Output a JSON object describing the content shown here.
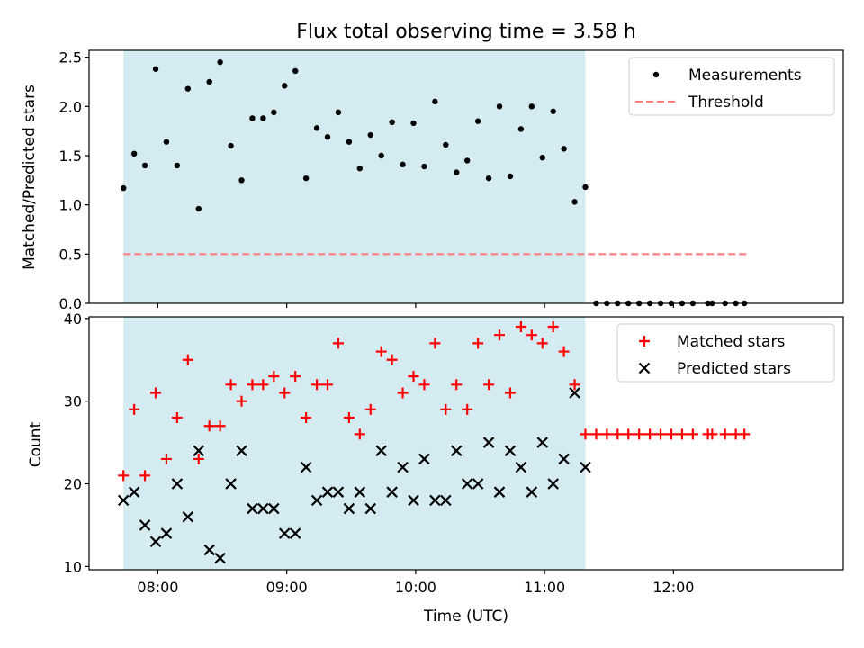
{
  "chart_data": [
    {
      "type": "scatter",
      "title": "Flux total observing time = 3.58 h",
      "ylabel": "Matched/Predicted stars",
      "xlabel": "",
      "ylim": [
        0,
        2.57
      ],
      "xlim": [
        "07:28",
        "13:19"
      ],
      "yticks": [
        "0.0",
        "0.5",
        "1.0",
        "1.5",
        "2.0",
        "2.5"
      ],
      "grid": false,
      "legend_position": "top-right",
      "shaded_interval": [
        "07:44",
        "11:19"
      ],
      "colors": {
        "measurements": "#000000",
        "threshold": "#ff7f7f",
        "shade": "#add8e6"
      },
      "series": [
        {
          "name": "Measurements",
          "marker": "dot",
          "points": [
            {
              "x": "07:44",
              "y": 1.17
            },
            {
              "x": "07:49",
              "y": 1.52
            },
            {
              "x": "07:54",
              "y": 1.4
            },
            {
              "x": "07:59",
              "y": 2.38
            },
            {
              "x": "08:04",
              "y": 1.64
            },
            {
              "x": "08:09",
              "y": 1.4
            },
            {
              "x": "08:14",
              "y": 2.18
            },
            {
              "x": "08:19",
              "y": 0.96
            },
            {
              "x": "08:24",
              "y": 2.25
            },
            {
              "x": "08:29",
              "y": 2.45
            },
            {
              "x": "08:34",
              "y": 1.6
            },
            {
              "x": "08:39",
              "y": 1.25
            },
            {
              "x": "08:44",
              "y": 1.88
            },
            {
              "x": "08:49",
              "y": 1.88
            },
            {
              "x": "08:54",
              "y": 1.94
            },
            {
              "x": "08:59",
              "y": 2.21
            },
            {
              "x": "09:04",
              "y": 2.36
            },
            {
              "x": "09:09",
              "y": 1.27
            },
            {
              "x": "09:14",
              "y": 1.78
            },
            {
              "x": "09:19",
              "y": 1.69
            },
            {
              "x": "09:24",
              "y": 1.94
            },
            {
              "x": "09:29",
              "y": 1.64
            },
            {
              "x": "09:34",
              "y": 1.37
            },
            {
              "x": "09:39",
              "y": 1.71
            },
            {
              "x": "09:44",
              "y": 1.5
            },
            {
              "x": "09:49",
              "y": 1.84
            },
            {
              "x": "09:54",
              "y": 1.41
            },
            {
              "x": "09:59",
              "y": 1.83
            },
            {
              "x": "10:04",
              "y": 1.39
            },
            {
              "x": "10:09",
              "y": 2.05
            },
            {
              "x": "10:14",
              "y": 1.61
            },
            {
              "x": "10:19",
              "y": 1.33
            },
            {
              "x": "10:24",
              "y": 1.45
            },
            {
              "x": "10:29",
              "y": 1.85
            },
            {
              "x": "10:34",
              "y": 1.27
            },
            {
              "x": "10:39",
              "y": 2.0
            },
            {
              "x": "10:44",
              "y": 1.29
            },
            {
              "x": "10:49",
              "y": 1.77
            },
            {
              "x": "10:54",
              "y": 2.0
            },
            {
              "x": "10:59",
              "y": 1.48
            },
            {
              "x": "11:04",
              "y": 1.95
            },
            {
              "x": "11:09",
              "y": 1.57
            },
            {
              "x": "11:14",
              "y": 1.03
            },
            {
              "x": "11:19",
              "y": 1.18
            },
            {
              "x": "11:24",
              "y": 0.0
            },
            {
              "x": "11:29",
              "y": 0.0
            },
            {
              "x": "11:34",
              "y": 0.0
            },
            {
              "x": "11:39",
              "y": 0.0
            },
            {
              "x": "11:44",
              "y": 0.0
            },
            {
              "x": "11:49",
              "y": 0.0
            },
            {
              "x": "11:54",
              "y": 0.0
            },
            {
              "x": "11:59",
              "y": 0.0
            },
            {
              "x": "12:04",
              "y": 0.0
            },
            {
              "x": "12:09",
              "y": 0.0
            },
            {
              "x": "12:16",
              "y": 0.0
            },
            {
              "x": "12:18",
              "y": 0.0
            },
            {
              "x": "12:24",
              "y": 0.0
            },
            {
              "x": "12:29",
              "y": 0.0
            },
            {
              "x": "12:33",
              "y": 0.0
            }
          ]
        },
        {
          "name": "Threshold",
          "style": "dashed-line",
          "x": [
            "07:44",
            "12:34"
          ],
          "y": [
            0.5,
            0.5
          ]
        }
      ]
    },
    {
      "type": "scatter",
      "title": "",
      "ylabel": "Count",
      "xlabel": "Time (UTC)",
      "ylim": [
        9.6,
        40.2
      ],
      "xlim": [
        "07:28",
        "13:19"
      ],
      "yticks": [
        "10",
        "20",
        "30",
        "40"
      ],
      "xticks": [
        "08:00",
        "09:00",
        "10:00",
        "11:00",
        "12:00"
      ],
      "grid": false,
      "legend_position": "top-right",
      "shaded_interval": [
        "07:44",
        "11:19"
      ],
      "colors": {
        "matched": "#ff0000",
        "predicted": "#000000",
        "shade": "#add8e6"
      },
      "series": [
        {
          "name": "Matched stars",
          "marker": "plus",
          "points": [
            {
              "x": "07:44",
              "y": 21
            },
            {
              "x": "07:49",
              "y": 29
            },
            {
              "x": "07:54",
              "y": 21
            },
            {
              "x": "07:59",
              "y": 31
            },
            {
              "x": "08:04",
              "y": 23
            },
            {
              "x": "08:09",
              "y": 28
            },
            {
              "x": "08:14",
              "y": 35
            },
            {
              "x": "08:19",
              "y": 23
            },
            {
              "x": "08:24",
              "y": 27
            },
            {
              "x": "08:29",
              "y": 27
            },
            {
              "x": "08:34",
              "y": 32
            },
            {
              "x": "08:39",
              "y": 30
            },
            {
              "x": "08:44",
              "y": 32
            },
            {
              "x": "08:49",
              "y": 32
            },
            {
              "x": "08:54",
              "y": 33
            },
            {
              "x": "08:59",
              "y": 31
            },
            {
              "x": "09:04",
              "y": 33
            },
            {
              "x": "09:09",
              "y": 28
            },
            {
              "x": "09:14",
              "y": 32
            },
            {
              "x": "09:19",
              "y": 32
            },
            {
              "x": "09:24",
              "y": 37
            },
            {
              "x": "09:29",
              "y": 28
            },
            {
              "x": "09:34",
              "y": 26
            },
            {
              "x": "09:39",
              "y": 29
            },
            {
              "x": "09:44",
              "y": 36
            },
            {
              "x": "09:49",
              "y": 35
            },
            {
              "x": "09:54",
              "y": 31
            },
            {
              "x": "09:59",
              "y": 33
            },
            {
              "x": "10:04",
              "y": 32
            },
            {
              "x": "10:09",
              "y": 37
            },
            {
              "x": "10:14",
              "y": 29
            },
            {
              "x": "10:19",
              "y": 32
            },
            {
              "x": "10:24",
              "y": 29
            },
            {
              "x": "10:29",
              "y": 37
            },
            {
              "x": "10:34",
              "y": 32
            },
            {
              "x": "10:39",
              "y": 38
            },
            {
              "x": "10:44",
              "y": 31
            },
            {
              "x": "10:49",
              "y": 39
            },
            {
              "x": "10:54",
              "y": 38
            },
            {
              "x": "10:59",
              "y": 37
            },
            {
              "x": "11:04",
              "y": 39
            },
            {
              "x": "11:09",
              "y": 36
            },
            {
              "x": "11:14",
              "y": 32
            },
            {
              "x": "11:19",
              "y": 26
            },
            {
              "x": "11:24",
              "y": 26
            },
            {
              "x": "11:29",
              "y": 26
            },
            {
              "x": "11:34",
              "y": 26
            },
            {
              "x": "11:39",
              "y": 26
            },
            {
              "x": "11:44",
              "y": 26
            },
            {
              "x": "11:49",
              "y": 26
            },
            {
              "x": "11:54",
              "y": 26
            },
            {
              "x": "11:59",
              "y": 26
            },
            {
              "x": "12:04",
              "y": 26
            },
            {
              "x": "12:09",
              "y": 26
            },
            {
              "x": "12:16",
              "y": 26
            },
            {
              "x": "12:18",
              "y": 26
            },
            {
              "x": "12:24",
              "y": 26
            },
            {
              "x": "12:29",
              "y": 26
            },
            {
              "x": "12:33",
              "y": 26
            }
          ]
        },
        {
          "name": "Predicted stars",
          "marker": "x",
          "points": [
            {
              "x": "07:44",
              "y": 18
            },
            {
              "x": "07:49",
              "y": 19
            },
            {
              "x": "07:54",
              "y": 15
            },
            {
              "x": "07:59",
              "y": 13
            },
            {
              "x": "08:04",
              "y": 14
            },
            {
              "x": "08:09",
              "y": 20
            },
            {
              "x": "08:14",
              "y": 16
            },
            {
              "x": "08:19",
              "y": 24
            },
            {
              "x": "08:24",
              "y": 12
            },
            {
              "x": "08:29",
              "y": 11
            },
            {
              "x": "08:34",
              "y": 20
            },
            {
              "x": "08:39",
              "y": 24
            },
            {
              "x": "08:44",
              "y": 17
            },
            {
              "x": "08:49",
              "y": 17
            },
            {
              "x": "08:54",
              "y": 17
            },
            {
              "x": "08:59",
              "y": 14
            },
            {
              "x": "09:04",
              "y": 14
            },
            {
              "x": "09:09",
              "y": 22
            },
            {
              "x": "09:14",
              "y": 18
            },
            {
              "x": "09:19",
              "y": 19
            },
            {
              "x": "09:24",
              "y": 19
            },
            {
              "x": "09:29",
              "y": 17
            },
            {
              "x": "09:34",
              "y": 19
            },
            {
              "x": "09:39",
              "y": 17
            },
            {
              "x": "09:44",
              "y": 24
            },
            {
              "x": "09:49",
              "y": 19
            },
            {
              "x": "09:54",
              "y": 22
            },
            {
              "x": "09:59",
              "y": 18
            },
            {
              "x": "10:04",
              "y": 23
            },
            {
              "x": "10:09",
              "y": 18
            },
            {
              "x": "10:14",
              "y": 18
            },
            {
              "x": "10:19",
              "y": 24
            },
            {
              "x": "10:24",
              "y": 20
            },
            {
              "x": "10:29",
              "y": 20
            },
            {
              "x": "10:34",
              "y": 25
            },
            {
              "x": "10:39",
              "y": 19
            },
            {
              "x": "10:44",
              "y": 24
            },
            {
              "x": "10:49",
              "y": 22
            },
            {
              "x": "10:54",
              "y": 19
            },
            {
              "x": "10:59",
              "y": 25
            },
            {
              "x": "11:04",
              "y": 20
            },
            {
              "x": "11:09",
              "y": 23
            },
            {
              "x": "11:14",
              "y": 31
            },
            {
              "x": "11:19",
              "y": 22
            }
          ]
        }
      ]
    }
  ]
}
